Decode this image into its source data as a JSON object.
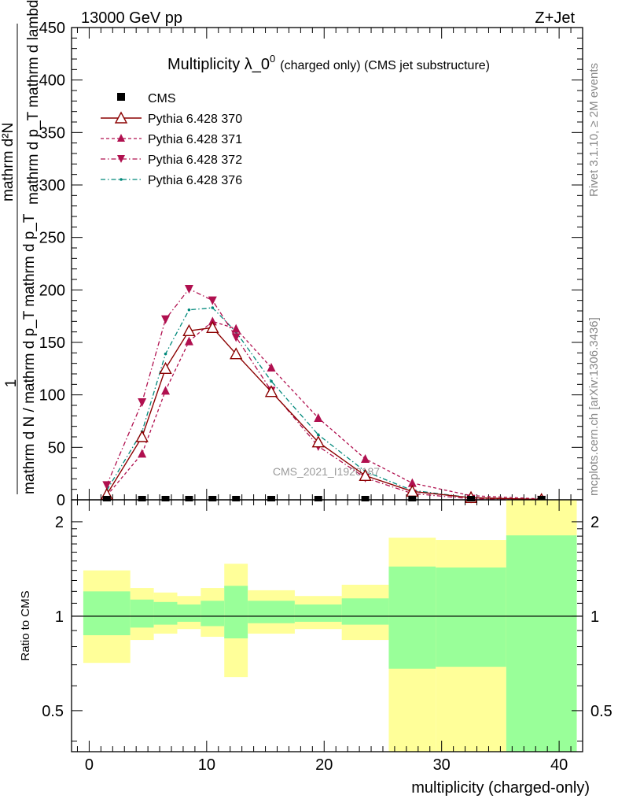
{
  "header": {
    "left_label": "13000 GeV pp",
    "right_label": "Z+Jet"
  },
  "side_text": {
    "rivet": "Rivet 3.1.10, ≥ 2M events",
    "mcplots": "mcplots.cern.ch [arXiv:1306.3436]"
  },
  "watermark": "CMS_2021_I1920187",
  "colors": {
    "cms": "#000000",
    "p370": "#8b0000",
    "p371": "#b0104f",
    "p372": "#b0104f",
    "p376": "#00897b",
    "band_inner": "#99ff99",
    "band_outer": "#ffff99"
  },
  "chart_data": [
    {
      "type": "line",
      "title": "Multiplicity λ_0",
      "title_sup": "0",
      "title_suffix": "(charged only) (CMS jet substructure)",
      "ylabel_top": "mathrm d²N",
      "ylabel_mid": "mathrm d p_T mathrm d lambda",
      "ylabel_one": "1",
      "ylabel_bottom": "mathrm d N / mathrm d p_T mathrm d p_T",
      "xlim": [
        -1.5,
        42
      ],
      "ylim": [
        0,
        450
      ],
      "y_ticks": [
        0,
        50,
        100,
        150,
        200,
        250,
        300,
        350,
        400,
        450
      ],
      "grid": false,
      "legend_position": "top-left",
      "x": [
        1.5,
        4.5,
        6.5,
        8.5,
        10.5,
        12.5,
        15.5,
        19.5,
        23.5,
        27.5,
        32.5,
        38.5
      ],
      "series": [
        {
          "name": "CMS",
          "values": [
            0,
            0,
            0,
            0,
            0,
            0,
            0,
            0,
            0,
            0,
            0,
            0
          ]
        },
        {
          "name": "Pythia 6.428 370",
          "values": [
            5,
            60,
            125,
            161,
            164,
            139,
            103,
            55,
            23,
            8,
            2,
            0.3
          ]
        },
        {
          "name": "Pythia 6.428 371",
          "values": [
            4,
            44,
            104,
            151,
            170,
            163,
            126,
            78,
            39,
            16,
            4,
            0.8
          ]
        },
        {
          "name": "Pythia 6.428 372",
          "values": [
            14,
            93,
            172,
            201,
            190,
            155,
            104,
            51,
            21,
            6,
            1,
            0.1
          ]
        },
        {
          "name": "Pythia 6.428 376",
          "values": [
            9,
            65,
            139,
            181,
            183,
            160,
            113,
            62,
            27,
            9,
            2,
            0.3
          ]
        }
      ]
    },
    {
      "type": "area",
      "ylabel": "Ratio to CMS",
      "xlabel": "multiplicity (charged-only)",
      "xlim": [
        -1.5,
        42
      ],
      "ylim": [
        0.37,
        2.35
      ],
      "y_scale": "log",
      "y_ticks": [
        0.5,
        1,
        2
      ],
      "x_ticks": [
        0,
        10,
        20,
        30,
        40
      ],
      "bins": [
        {
          "lo": -0.5,
          "hi": 3.5,
          "inner": [
            0.87,
            1.2
          ],
          "outer": [
            0.71,
            1.4
          ]
        },
        {
          "lo": 3.5,
          "hi": 5.5,
          "inner": [
            0.92,
            1.13
          ],
          "outer": [
            0.84,
            1.23
          ]
        },
        {
          "lo": 5.5,
          "hi": 7.5,
          "inner": [
            0.94,
            1.11
          ],
          "outer": [
            0.88,
            1.19
          ]
        },
        {
          "lo": 7.5,
          "hi": 9.5,
          "inner": [
            0.96,
            1.09
          ],
          "outer": [
            0.91,
            1.16
          ]
        },
        {
          "lo": 9.5,
          "hi": 11.5,
          "inner": [
            0.93,
            1.12
          ],
          "outer": [
            0.86,
            1.23
          ]
        },
        {
          "lo": 11.5,
          "hi": 13.5,
          "inner": [
            0.85,
            1.25
          ],
          "outer": [
            0.64,
            1.47
          ]
        },
        {
          "lo": 13.5,
          "hi": 17.5,
          "inner": [
            0.95,
            1.12
          ],
          "outer": [
            0.88,
            1.21
          ]
        },
        {
          "lo": 17.5,
          "hi": 21.5,
          "inner": [
            0.96,
            1.09
          ],
          "outer": [
            0.91,
            1.16
          ]
        },
        {
          "lo": 21.5,
          "hi": 25.5,
          "inner": [
            0.94,
            1.14
          ],
          "outer": [
            0.84,
            1.26
          ]
        },
        {
          "lo": 25.5,
          "hi": 29.5,
          "inner": [
            0.68,
            1.44
          ],
          "outer": [
            0.37,
            1.78
          ]
        },
        {
          "lo": 29.5,
          "hi": 35.5,
          "inner": [
            0.69,
            1.43
          ],
          "outer": [
            0.37,
            1.75
          ]
        },
        {
          "lo": 35.5,
          "hi": 41.5,
          "inner": [
            0.37,
            1.81
          ],
          "outer": [
            0.37,
            2.35
          ]
        }
      ],
      "reference": 1
    }
  ]
}
